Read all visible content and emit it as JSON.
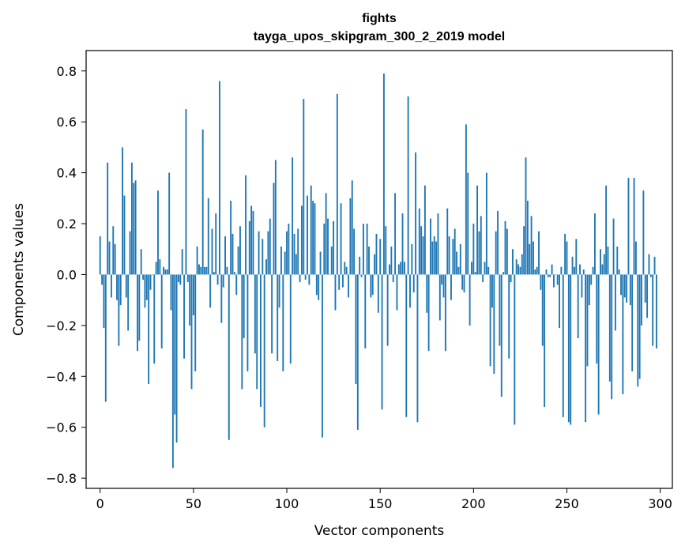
{
  "chart_data": {
    "type": "bar",
    "title": "fights",
    "subtitle": "tayga_upos_skipgram_300_2_2019 model",
    "xlabel": "Vector components",
    "ylabel": "Components values",
    "xlim": [
      -7.5,
      306.5
    ],
    "ylim": [
      -0.84,
      0.88
    ],
    "xticks": [
      0,
      50,
      100,
      150,
      200,
      250,
      300
    ],
    "yticks": [
      -0.8,
      -0.6,
      -0.4,
      -0.2,
      0.0,
      0.2,
      0.4,
      0.6,
      0.8
    ],
    "ytick_labels": [
      "−0.8",
      "−0.6",
      "−0.4",
      "−0.2",
      "0.0",
      "0.2",
      "0.4",
      "0.6",
      "0.8"
    ],
    "bar_color": "#1f77b4",
    "grid": false,
    "values": [
      0.15,
      -0.04,
      -0.21,
      -0.5,
      0.44,
      0.13,
      -0.09,
      0.19,
      0.12,
      -0.1,
      -0.28,
      -0.12,
      0.5,
      0.31,
      -0.09,
      -0.22,
      0.17,
      0.44,
      0.36,
      0.37,
      -0.3,
      -0.26,
      0.1,
      -0.02,
      -0.13,
      -0.1,
      -0.43,
      -0.06,
      0.0,
      -0.35,
      0.05,
      0.33,
      0.06,
      -0.29,
      0.03,
      0.02,
      0.02,
      0.4,
      -0.14,
      -0.76,
      -0.55,
      -0.66,
      -0.03,
      -0.04,
      0.1,
      -0.33,
      0.65,
      -0.03,
      -0.2,
      -0.45,
      -0.16,
      -0.38,
      0.11,
      0.04,
      0.03,
      0.57,
      0.03,
      0.03,
      0.3,
      -0.13,
      0.18,
      0.01,
      0.24,
      -0.04,
      0.76,
      -0.19,
      -0.05,
      0.15,
      0.03,
      -0.65,
      0.29,
      0.16,
      0.01,
      -0.08,
      0.11,
      0.19,
      -0.45,
      -0.25,
      0.39,
      -0.38,
      0.21,
      0.27,
      0.25,
      -0.31,
      -0.45,
      0.17,
      -0.52,
      0.14,
      -0.6,
      0.06,
      0.17,
      0.22,
      -0.31,
      0.36,
      0.45,
      -0.34,
      -0.13,
      0.11,
      -0.38,
      0.09,
      0.17,
      0.2,
      -0.35,
      0.46,
      0.16,
      0.08,
      0.18,
      -0.03,
      0.27,
      0.69,
      -0.02,
      0.31,
      -0.04,
      0.35,
      0.29,
      0.28,
      -0.08,
      -0.1,
      0.09,
      -0.64,
      0.2,
      0.32,
      0.22,
      0.0,
      0.11,
      0.21,
      -0.14,
      0.71,
      -0.06,
      0.28,
      -0.05,
      0.05,
      0.03,
      -0.09,
      0.3,
      0.37,
      0.18,
      -0.43,
      -0.61,
      0.07,
      -0.01,
      0.2,
      -0.29,
      0.2,
      0.11,
      -0.09,
      -0.08,
      0.08,
      0.16,
      -0.15,
      0.14,
      -0.53,
      0.79,
      0.19,
      -0.28,
      0.04,
      0.11,
      -0.03,
      0.32,
      -0.14,
      0.04,
      0.05,
      0.24,
      0.05,
      -0.56,
      0.7,
      -0.13,
      0.12,
      -0.07,
      0.48,
      -0.58,
      0.26,
      0.19,
      0.15,
      0.35,
      -0.15,
      -0.3,
      0.22,
      0.13,
      0.15,
      0.13,
      0.24,
      -0.18,
      -0.04,
      -0.09,
      -0.3,
      0.26,
      0.15,
      -0.1,
      0.14,
      0.18,
      0.09,
      0.03,
      0.12,
      -0.06,
      -0.07,
      0.59,
      0.4,
      -0.2,
      0.05,
      0.2,
      0.01,
      0.35,
      0.17,
      0.23,
      -0.03,
      0.05,
      0.4,
      0.03,
      -0.36,
      -0.13,
      -0.39,
      0.17,
      0.25,
      -0.28,
      -0.48,
      0.01,
      0.21,
      0.18,
      -0.33,
      -0.03,
      0.1,
      -0.59,
      0.06,
      0.04,
      0.03,
      0.08,
      0.19,
      0.46,
      0.29,
      0.12,
      0.23,
      0.13,
      0.02,
      0.03,
      0.17,
      -0.06,
      -0.28,
      -0.52,
      0.02,
      -0.01,
      -0.01,
      0.04,
      -0.05,
      0.0,
      -0.04,
      -0.21,
      0.03,
      -0.56,
      0.16,
      0.13,
      -0.58,
      -0.59,
      0.07,
      0.03,
      0.14,
      -0.25,
      0.04,
      -0.09,
      0.02,
      -0.58,
      -0.36,
      -0.12,
      -0.04,
      0.03,
      0.24,
      -0.35,
      -0.55,
      0.1,
      0.04,
      0.08,
      0.35,
      0.11,
      -0.42,
      -0.49,
      0.22,
      -0.22,
      0.11,
      0.02,
      -0.08,
      -0.47,
      -0.09,
      -0.11,
      0.38,
      -0.12,
      -0.38,
      0.38,
      0.13,
      -0.44,
      -0.41,
      -0.2,
      0.33,
      -0.11,
      -0.17,
      0.08,
      -0.01,
      -0.28,
      0.07,
      -0.29
    ]
  }
}
